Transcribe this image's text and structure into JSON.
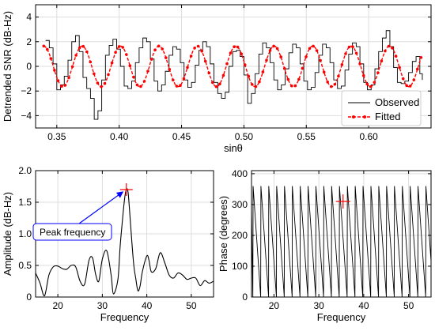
{
  "chart_data": [
    {
      "id": "top",
      "type": "line",
      "xlabel": "sinθ",
      "ylabel": "Detrended SNR (dB-Hz)",
      "xlim": [
        0.333,
        0.65
      ],
      "ylim": [
        -5,
        5
      ],
      "xticks": [
        0.35,
        0.4,
        0.45,
        0.5,
        0.55,
        0.6
      ],
      "xtick_labels": [
        "0.35",
        "0.40",
        "0.45",
        "0.50",
        "0.55",
        "0.60"
      ],
      "yticks": [
        -4,
        -2,
        0,
        2,
        4
      ],
      "ytick_labels": [
        "−4",
        "−2",
        "0",
        "2",
        "4"
      ],
      "grid": true,
      "legend": {
        "placement": "bottom-right"
      },
      "series": [
        {
          "name": "Observed",
          "color": "#000000",
          "style": "solid",
          "x": [
            0.341,
            0.344,
            0.347,
            0.35,
            0.353,
            0.356,
            0.359,
            0.362,
            0.365,
            0.368,
            0.371,
            0.374,
            0.377,
            0.38,
            0.383,
            0.386,
            0.389,
            0.392,
            0.395,
            0.398,
            0.401,
            0.404,
            0.407,
            0.41,
            0.413,
            0.416,
            0.419,
            0.422,
            0.425,
            0.428,
            0.431,
            0.434,
            0.437,
            0.44,
            0.443,
            0.446,
            0.449,
            0.452,
            0.455,
            0.458,
            0.461,
            0.464,
            0.467,
            0.47,
            0.473,
            0.476,
            0.479,
            0.482,
            0.485,
            0.488,
            0.491,
            0.494,
            0.497,
            0.5,
            0.503,
            0.506,
            0.509,
            0.512,
            0.515,
            0.518,
            0.521,
            0.524,
            0.527,
            0.53,
            0.533,
            0.536,
            0.539,
            0.542,
            0.545,
            0.548,
            0.551,
            0.554,
            0.557,
            0.56,
            0.563,
            0.566,
            0.569,
            0.572,
            0.575,
            0.578,
            0.581,
            0.584,
            0.587,
            0.59,
            0.593,
            0.596,
            0.599,
            0.602,
            0.605,
            0.608,
            0.611,
            0.614,
            0.617,
            0.62,
            0.623,
            0.626,
            0.629,
            0.632,
            0.635,
            0.638,
            0.641,
            0.643
          ],
          "y": [
            2.1,
            1.5,
            0.2,
            -1.9,
            -1.5,
            -0.8,
            0.5,
            2.0,
            2.5,
            1.2,
            -0.9,
            -1.8,
            -2.6,
            -4.3,
            -3.6,
            -1.1,
            0.9,
            1.7,
            2.2,
            1.4,
            0.0,
            -1.6,
            -1.8,
            -1.2,
            0.3,
            1.5,
            2.3,
            2.0,
            0.6,
            -1.2,
            -2.0,
            -1.5,
            -0.4,
            0.9,
            1.6,
            1.4,
            0.3,
            -1.1,
            -1.7,
            -1.3,
            0.1,
            1.3,
            2.0,
            1.6,
            0.2,
            -1.3,
            -2.2,
            -2.6,
            -2.1,
            0.0,
            1.2,
            1.3,
            0.8,
            -0.7,
            -3.0,
            -2.2,
            -0.6,
            1.0,
            1.9,
            1.5,
            0.3,
            -1.1,
            -1.9,
            -1.5,
            -0.2,
            1.1,
            1.8,
            1.5,
            0.2,
            -1.2,
            -1.9,
            -1.7,
            -0.5,
            0.9,
            1.8,
            1.5,
            0.3,
            -1.1,
            -1.8,
            -1.6,
            -0.3,
            1.0,
            1.9,
            1.6,
            0.2,
            -1.3,
            -1.9,
            -1.5,
            -0.2,
            1.2,
            2.3,
            2.9,
            1.6,
            -0.1,
            -1.3,
            -1.4,
            -1.2,
            -0.5,
            0.4,
            0.8,
            -0.6,
            -1.1
          ]
        },
        {
          "name": "Fitted",
          "color": "#ff0000",
          "style": "dashed-markers",
          "amplitude": 1.65,
          "period": 0.0308,
          "x_start": 0.3395,
          "x_end": 0.642
        }
      ]
    },
    {
      "id": "amplitude",
      "type": "line",
      "xlabel": "Frequency",
      "ylabel": "Amplitude (dB-Hz)",
      "xlim": [
        15,
        55
      ],
      "ylim": [
        0,
        2.0
      ],
      "xticks": [
        20,
        30,
        40,
        50
      ],
      "xtick_labels": [
        "20",
        "30",
        "40",
        "50"
      ],
      "yticks": [
        0,
        0.5,
        1.0,
        1.5,
        2.0
      ],
      "ytick_labels": [
        "0",
        "0.5",
        "1.0",
        "1.5",
        "2.0"
      ],
      "grid": true,
      "series": [
        {
          "color": "#000000",
          "x": [
            15.0,
            16.0,
            17.0,
            18.0,
            19.0,
            20.0,
            21.0,
            22.0,
            23.0,
            24.0,
            25.0,
            26.0,
            27.0,
            27.8,
            28.5,
            29.2,
            30.0,
            31.0,
            32.0,
            32.5,
            33.5,
            34.0,
            34.5,
            35.0,
            35.4,
            35.8,
            36.3,
            37.0,
            37.5,
            38.0,
            38.5,
            39.0,
            40.0,
            40.5,
            41.0,
            42.0,
            43.0,
            44.0,
            45.0,
            46.0,
            47.0,
            48.0,
            49.0,
            50.0,
            51.0,
            52.0,
            53.0,
            54.0,
            55.0
          ],
          "y": [
            0.38,
            0.22,
            0.02,
            0.35,
            0.48,
            0.49,
            0.45,
            0.44,
            0.5,
            0.48,
            0.25,
            0.2,
            0.58,
            0.62,
            0.36,
            0.25,
            0.6,
            0.73,
            0.34,
            0.05,
            0.28,
            0.8,
            1.2,
            1.55,
            1.7,
            1.65,
            1.2,
            0.55,
            0.3,
            0.1,
            0.18,
            0.4,
            0.65,
            0.58,
            0.4,
            0.45,
            0.7,
            0.55,
            0.35,
            0.3,
            0.38,
            0.35,
            0.28,
            0.3,
            0.3,
            0.18,
            0.26,
            0.22,
            0.25
          ]
        }
      ],
      "peak_marker": {
        "x": 35.4,
        "y": 1.7,
        "color": "#ff0000"
      },
      "annotation": {
        "text": "Peak frequency",
        "x": 21.5,
        "y": 1.04,
        "arrow_to": [
          35.0,
          1.69
        ],
        "color": "#0000ff"
      }
    },
    {
      "id": "phase",
      "type": "line",
      "xlabel": "Frequency",
      "ylabel": "Phase (degrees)",
      "xlim": [
        15,
        55
      ],
      "ylim": [
        0,
        410
      ],
      "xticks": [
        20,
        30,
        40,
        50
      ],
      "xtick_labels": [
        "20",
        "30",
        "40",
        "50"
      ],
      "yticks": [
        0,
        100,
        200,
        300,
        400
      ],
      "ytick_labels": [
        "0",
        "100",
        "200",
        "300",
        "400"
      ],
      "grid": true,
      "series": [
        {
          "color": "#000000",
          "sawtooth_period": 1.75,
          "x_start": 15.3,
          "value_high": 360,
          "value_low": 0
        }
      ],
      "peak_marker": {
        "x": 35.4,
        "y": 310,
        "color": "#ff0000"
      }
    }
  ],
  "legend": {
    "observed_label": "Observed",
    "fitted_label": "Fitted"
  },
  "annotation_label": "Peak frequency"
}
